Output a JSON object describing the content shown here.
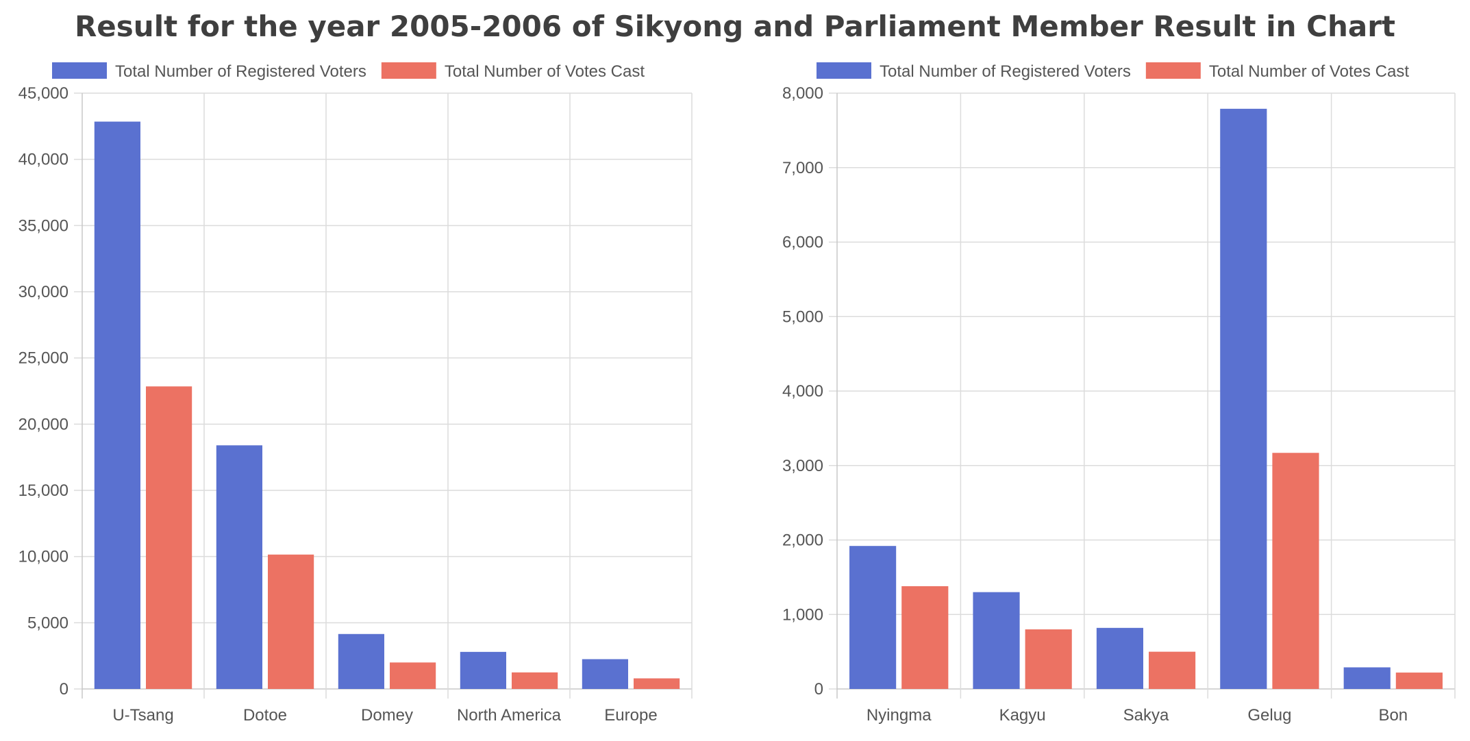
{
  "title": "Result for the year 2005-2006 of Sikyong and Parliament Member Result in Chart",
  "colors": {
    "registered": "#5a71d0",
    "cast": "#ec7263",
    "grid": "#dcdcdc",
    "axis": "#c8c8c8"
  },
  "chart_data": [
    {
      "type": "bar",
      "categories": [
        "U-Tsang",
        "Dotoe",
        "Domey",
        "North America",
        "Europe"
      ],
      "series": [
        {
          "name": "Total Number of Registered Voters",
          "values": [
            42850,
            18400,
            4150,
            2800,
            2250
          ]
        },
        {
          "name": "Total Number of Votes Cast",
          "values": [
            22850,
            10150,
            2000,
            1250,
            800
          ]
        }
      ],
      "ylim": [
        0,
        45000
      ],
      "yticks": [
        0,
        5000,
        10000,
        15000,
        20000,
        25000,
        30000,
        35000,
        40000,
        45000
      ],
      "ytick_labels": [
        "0",
        "5,000",
        "10,000",
        "15,000",
        "20,000",
        "25,000",
        "30,000",
        "35,000",
        "40,000",
        "45,000"
      ],
      "legend": "top-left",
      "grid": true
    },
    {
      "type": "bar",
      "categories": [
        "Nyingma",
        "Kagyu",
        "Sakya",
        "Gelug",
        "Bon"
      ],
      "series": [
        {
          "name": "Total Number of Registered Voters",
          "values": [
            1920,
            1300,
            820,
            7790,
            290
          ]
        },
        {
          "name": "Total Number of Votes Cast",
          "values": [
            1380,
            800,
            500,
            3170,
            220
          ]
        }
      ],
      "ylim": [
        0,
        8000
      ],
      "yticks": [
        0,
        1000,
        2000,
        3000,
        4000,
        5000,
        6000,
        7000,
        8000
      ],
      "ytick_labels": [
        "0",
        "1,000",
        "2,000",
        "3,000",
        "4,000",
        "5,000",
        "6,000",
        "7,000",
        "8,000"
      ],
      "legend": "top-left",
      "grid": true
    }
  ]
}
